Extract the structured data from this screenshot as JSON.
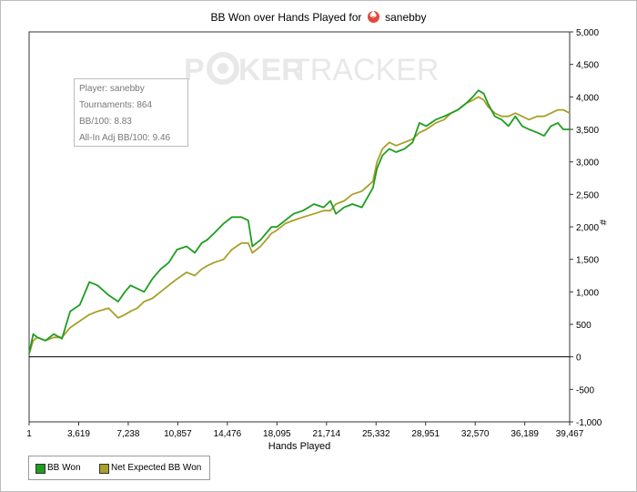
{
  "title": {
    "prefix": "BB Won over Hands Played for",
    "player": "sanebby",
    "icon": "spade-chip-icon",
    "icon_color": "#e04a3a"
  },
  "watermark": {
    "left": "P",
    "right": "KER",
    "tracker": "TRACKER",
    "chip_icon": "poker-chip-icon"
  },
  "stats": {
    "player": "Player: sanebby",
    "tournaments": "Tournaments: 864",
    "bb100": "BB/100: 8.83",
    "allin": "All-In Adj BB/100: 9.46"
  },
  "legend": {
    "items": [
      {
        "label": "BB Won",
        "color": "#1f9d1f"
      },
      {
        "label": "Net Expected BB Won",
        "color": "#a8a02a"
      }
    ]
  },
  "chart_data": {
    "type": "line",
    "title": "BB Won over Hands Played for sanebby",
    "xlabel": "Hands Played",
    "ylabel": "#",
    "xlim": [
      1,
      39467
    ],
    "ylim": [
      -1000,
      5000
    ],
    "x_ticks": [
      "1",
      "3,619",
      "7,238",
      "10,857",
      "14,476",
      "18,095",
      "21,714",
      "25,332",
      "28,951",
      "32,570",
      "36,189",
      "39,467"
    ],
    "x_tick_values": [
      1,
      3619,
      7238,
      10857,
      14476,
      18095,
      21714,
      25332,
      28951,
      32570,
      36189,
      39467
    ],
    "y_ticks": [
      "-1,000",
      "-500",
      "0",
      "500",
      "1,000",
      "1,500",
      "2,000",
      "2,500",
      "3,000",
      "3,500",
      "4,000",
      "4,500",
      "5,000"
    ],
    "y_tick_values": [
      -1000,
      -500,
      0,
      500,
      1000,
      1500,
      2000,
      2500,
      3000,
      3500,
      4000,
      4500,
      5000
    ],
    "grid": false,
    "legend_position": "bottom-left",
    "series": [
      {
        "name": "BB Won",
        "color": "#1f9d1f",
        "x": [
          1,
          300,
          600,
          1200,
          1800,
          2400,
          3000,
          3700,
          4400,
          5000,
          5800,
          6500,
          7000,
          7400,
          7900,
          8400,
          9000,
          9600,
          10200,
          10800,
          11500,
          12100,
          12600,
          13000,
          13500,
          14200,
          14800,
          15500,
          16000,
          16300,
          16900,
          17300,
          17700,
          18100,
          18700,
          19300,
          20000,
          20800,
          21500,
          22000,
          22400,
          23000,
          23600,
          24300,
          25100,
          25400,
          25800,
          26300,
          26800,
          27400,
          28000,
          28500,
          29000,
          29700,
          30300,
          30800,
          31300,
          31900,
          32400,
          32800,
          33200,
          33500,
          34000,
          34500,
          35000,
          35500,
          36000,
          36500,
          37100,
          37600,
          38100,
          38600,
          39000,
          39467
        ],
        "y": [
          50,
          350,
          300,
          250,
          350,
          280,
          700,
          800,
          1150,
          1100,
          950,
          850,
          1000,
          1100,
          1050,
          1000,
          1200,
          1350,
          1450,
          1650,
          1700,
          1600,
          1750,
          1800,
          1900,
          2050,
          2150,
          2150,
          2100,
          1700,
          1800,
          1900,
          2000,
          2000,
          2100,
          2200,
          2250,
          2350,
          2300,
          2400,
          2200,
          2300,
          2350,
          2300,
          2600,
          2900,
          3100,
          3200,
          3150,
          3200,
          3300,
          3600,
          3550,
          3650,
          3700,
          3750,
          3800,
          3900,
          4000,
          4100,
          4050,
          3900,
          3700,
          3650,
          3550,
          3700,
          3550,
          3500,
          3450,
          3400,
          3550,
          3600,
          3500,
          3500
        ]
      },
      {
        "name": "Net Expected BB Won",
        "color": "#a8a02a",
        "x": [
          1,
          300,
          600,
          1200,
          1800,
          2400,
          3000,
          3700,
          4400,
          5000,
          5800,
          6500,
          7000,
          7400,
          7900,
          8400,
          9000,
          9600,
          10200,
          10800,
          11500,
          12100,
          12600,
          13000,
          13500,
          14200,
          14800,
          15500,
          16000,
          16300,
          16900,
          17300,
          17700,
          18100,
          18700,
          19300,
          20000,
          20800,
          21500,
          22000,
          22400,
          23000,
          23600,
          24300,
          25100,
          25400,
          25800,
          26300,
          26800,
          27400,
          28000,
          28500,
          29000,
          29700,
          30300,
          30800,
          31300,
          31900,
          32400,
          32800,
          33200,
          33500,
          34000,
          34500,
          35000,
          35500,
          36000,
          36500,
          37100,
          37600,
          38100,
          38600,
          39000,
          39467
        ],
        "y": [
          50,
          250,
          300,
          250,
          300,
          300,
          450,
          550,
          650,
          700,
          750,
          600,
          650,
          700,
          750,
          850,
          900,
          1000,
          1100,
          1200,
          1300,
          1250,
          1350,
          1400,
          1450,
          1500,
          1650,
          1750,
          1750,
          1600,
          1700,
          1800,
          1900,
          1950,
          2050,
          2100,
          2150,
          2200,
          2250,
          2250,
          2350,
          2400,
          2500,
          2550,
          2700,
          3000,
          3200,
          3300,
          3250,
          3300,
          3350,
          3450,
          3500,
          3600,
          3650,
          3750,
          3800,
          3900,
          3950,
          4000,
          3950,
          3850,
          3750,
          3700,
          3700,
          3750,
          3700,
          3650,
          3700,
          3700,
          3750,
          3800,
          3800,
          3750
        ]
      }
    ]
  }
}
